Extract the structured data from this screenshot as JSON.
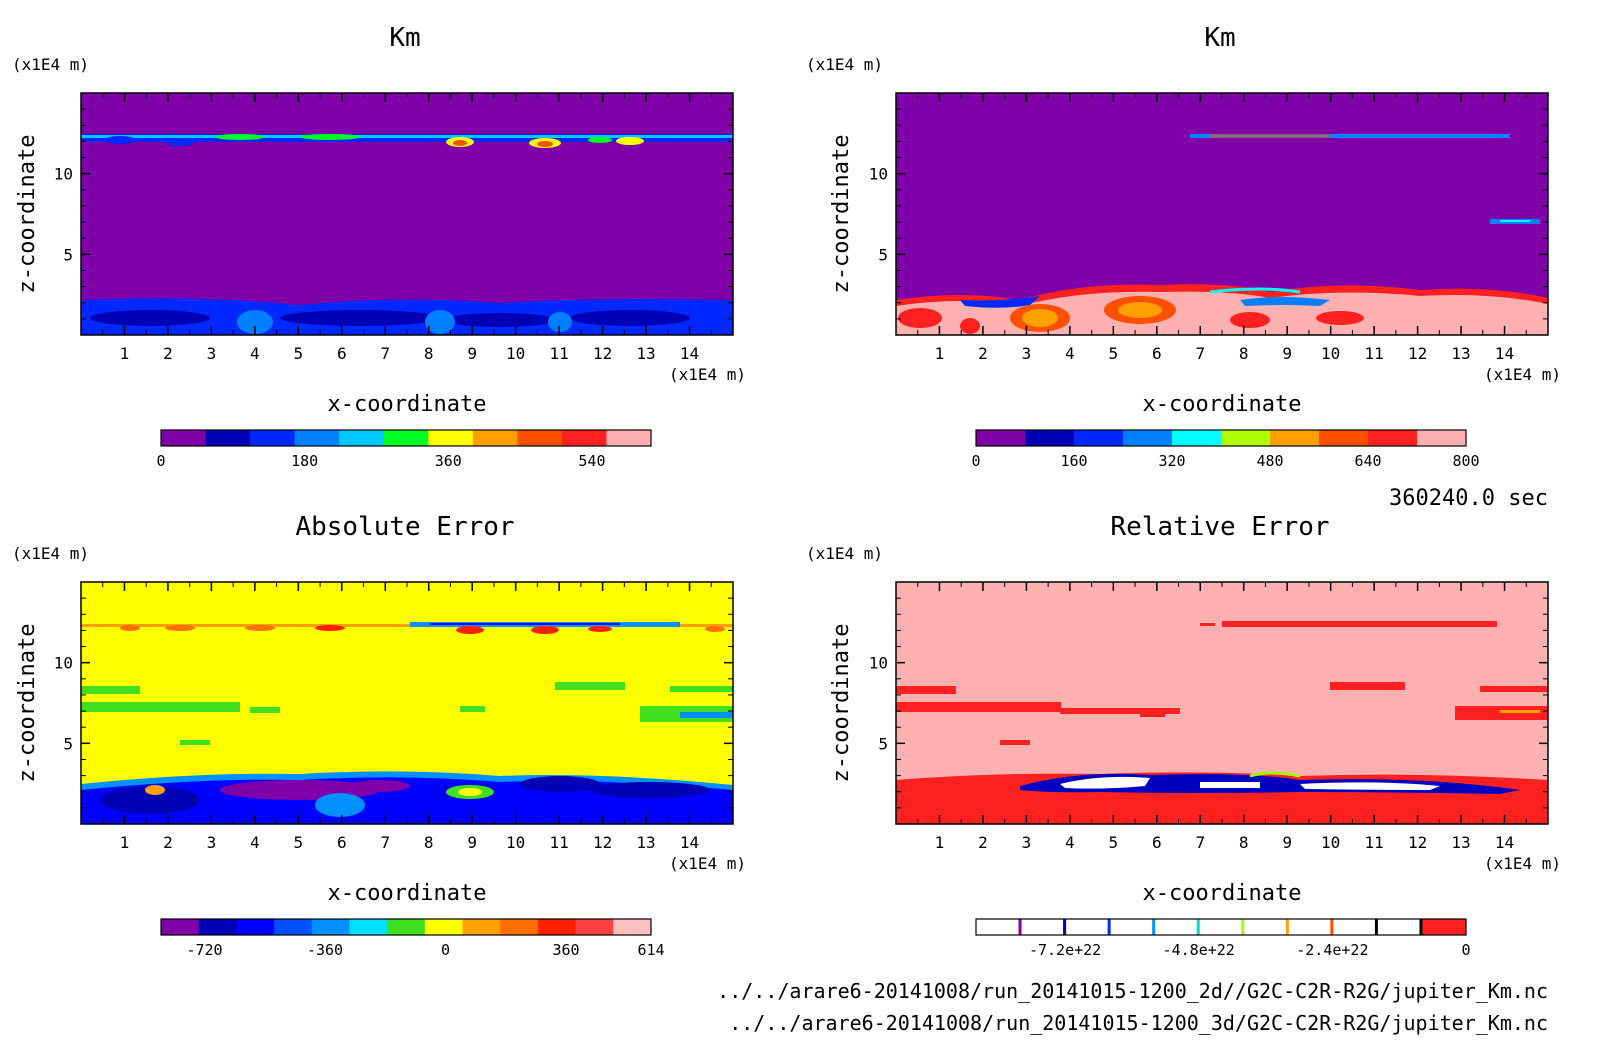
{
  "time_label": "360240.0 sec",
  "files": [
    "../../arare6-20141008/run_20141015-1200_2d//G2C-C2R-R2G/jupiter_Km.nc",
    "../../arare6-20141008/run_20141015-1200_3d/G2C-C2R-R2G/jupiter_Km.nc"
  ],
  "chart_data": [
    {
      "type": "heatmap",
      "title": "Km",
      "xlabel": "x-coordinate",
      "ylabel": "z-coordinate",
      "x_unit": "(x1E4 m)",
      "y_unit": "(x1E4 m)",
      "xlim": [
        0,
        15
      ],
      "ylim": [
        0,
        15
      ],
      "x_ticks": [
        "1",
        "2",
        "3",
        "4",
        "5",
        "6",
        "7",
        "8",
        "9",
        "10",
        "11",
        "12",
        "13",
        "14"
      ],
      "y_ticks": [
        "5",
        "10"
      ],
      "colorbar": {
        "colors": [
          "#7f00a8",
          "#0000b4",
          "#0028ff",
          "#0080ff",
          "#00c8ff",
          "#00ff20",
          "#ffff00",
          "#ffa000",
          "#ff5000",
          "#ff2020",
          "#ffb0b0"
        ],
        "ticks": [
          {
            "v": 0,
            "label": "0"
          },
          {
            "v": 180,
            "label": "180"
          },
          {
            "v": 360,
            "label": "360"
          },
          {
            "v": 540,
            "label": "540"
          }
        ],
        "range": [
          0,
          614
        ]
      }
    },
    {
      "type": "heatmap",
      "title": "Km",
      "xlabel": "x-coordinate",
      "ylabel": "z-coordinate",
      "x_unit": "(x1E4 m)",
      "y_unit": "(x1E4 m)",
      "xlim": [
        0,
        15
      ],
      "ylim": [
        0,
        15
      ],
      "x_ticks": [
        "1",
        "2",
        "3",
        "4",
        "5",
        "6",
        "7",
        "8",
        "9",
        "10",
        "11",
        "12",
        "13",
        "14"
      ],
      "y_ticks": [
        "5",
        "10"
      ],
      "colorbar": {
        "colors": [
          "#7f00a8",
          "#0000b4",
          "#0028ff",
          "#0080ff",
          "#00ffff",
          "#b0ff00",
          "#ffa000",
          "#ff5000",
          "#ff2020",
          "#ffb0b0"
        ],
        "ticks": [
          {
            "v": 0,
            "label": "0"
          },
          {
            "v": 160,
            "label": "160"
          },
          {
            "v": 320,
            "label": "320"
          },
          {
            "v": 480,
            "label": "480"
          },
          {
            "v": 640,
            "label": "640"
          },
          {
            "v": 800,
            "label": "800"
          }
        ],
        "range": [
          0,
          800
        ]
      }
    },
    {
      "type": "heatmap",
      "title": "Absolute Error",
      "xlabel": "x-coordinate",
      "ylabel": "z-coordinate",
      "x_unit": "(x1E4 m)",
      "y_unit": "(x1E4 m)",
      "xlim": [
        0,
        15
      ],
      "ylim": [
        0,
        15
      ],
      "x_ticks": [
        "1",
        "2",
        "3",
        "4",
        "5",
        "6",
        "7",
        "8",
        "9",
        "10",
        "11",
        "12",
        "13",
        "14"
      ],
      "y_ticks": [
        "5",
        "10"
      ],
      "colorbar": {
        "colors": [
          "#7f00a8",
          "#0000b4",
          "#0000ff",
          "#0050ff",
          "#0090ff",
          "#00e0ff",
          "#40e020",
          "#ffff00",
          "#ffa000",
          "#ff7000",
          "#ff2000",
          "#ff4040",
          "#ffc0c0"
        ],
        "ticks": [
          {
            "v": -720,
            "label": "-720"
          },
          {
            "v": -360,
            "label": "-360"
          },
          {
            "v": 0,
            "label": "0"
          },
          {
            "v": 360,
            "label": "360"
          },
          {
            "v": 614,
            "label": "614"
          }
        ],
        "range": [
          -850,
          614
        ]
      }
    },
    {
      "type": "heatmap",
      "title": "Relative Error",
      "xlabel": "x-coordinate",
      "ylabel": "z-coordinate",
      "x_unit": "(x1E4 m)",
      "y_unit": "(x1E4 m)",
      "xlim": [
        0,
        15
      ],
      "ylim": [
        0,
        15
      ],
      "x_ticks": [
        "1",
        "2",
        "3",
        "4",
        "5",
        "6",
        "7",
        "8",
        "9",
        "10",
        "11",
        "12",
        "13",
        "14"
      ],
      "y_ticks": [
        "5",
        "10"
      ],
      "colorbar": {
        "colors": [
          "#ffffff",
          "#ffffff",
          "#ffffff",
          "#ffffff",
          "#ffffff",
          "#ffffff",
          "#ffffff",
          "#ffffff",
          "#ffffff",
          "#ffffff",
          "#ff2020"
        ],
        "separators": [
          "#8000a0",
          "#0000c0",
          "#0030ff",
          "#0090ff",
          "#00e0c0",
          "#a0ff00",
          "#ffa000",
          "#ff5000",
          "#000000",
          "#000000"
        ],
        "ticks": [
          {
            "v": -7.2e+22,
            "label": "-7.2e+22"
          },
          {
            "v": -4.8e+22,
            "label": "-4.8e+22"
          },
          {
            "v": -2.4e+22,
            "label": "-2.4e+22"
          },
          {
            "v": 0,
            "label": "0"
          }
        ],
        "range": [
          -8.8e+22,
          0
        ]
      }
    }
  ]
}
